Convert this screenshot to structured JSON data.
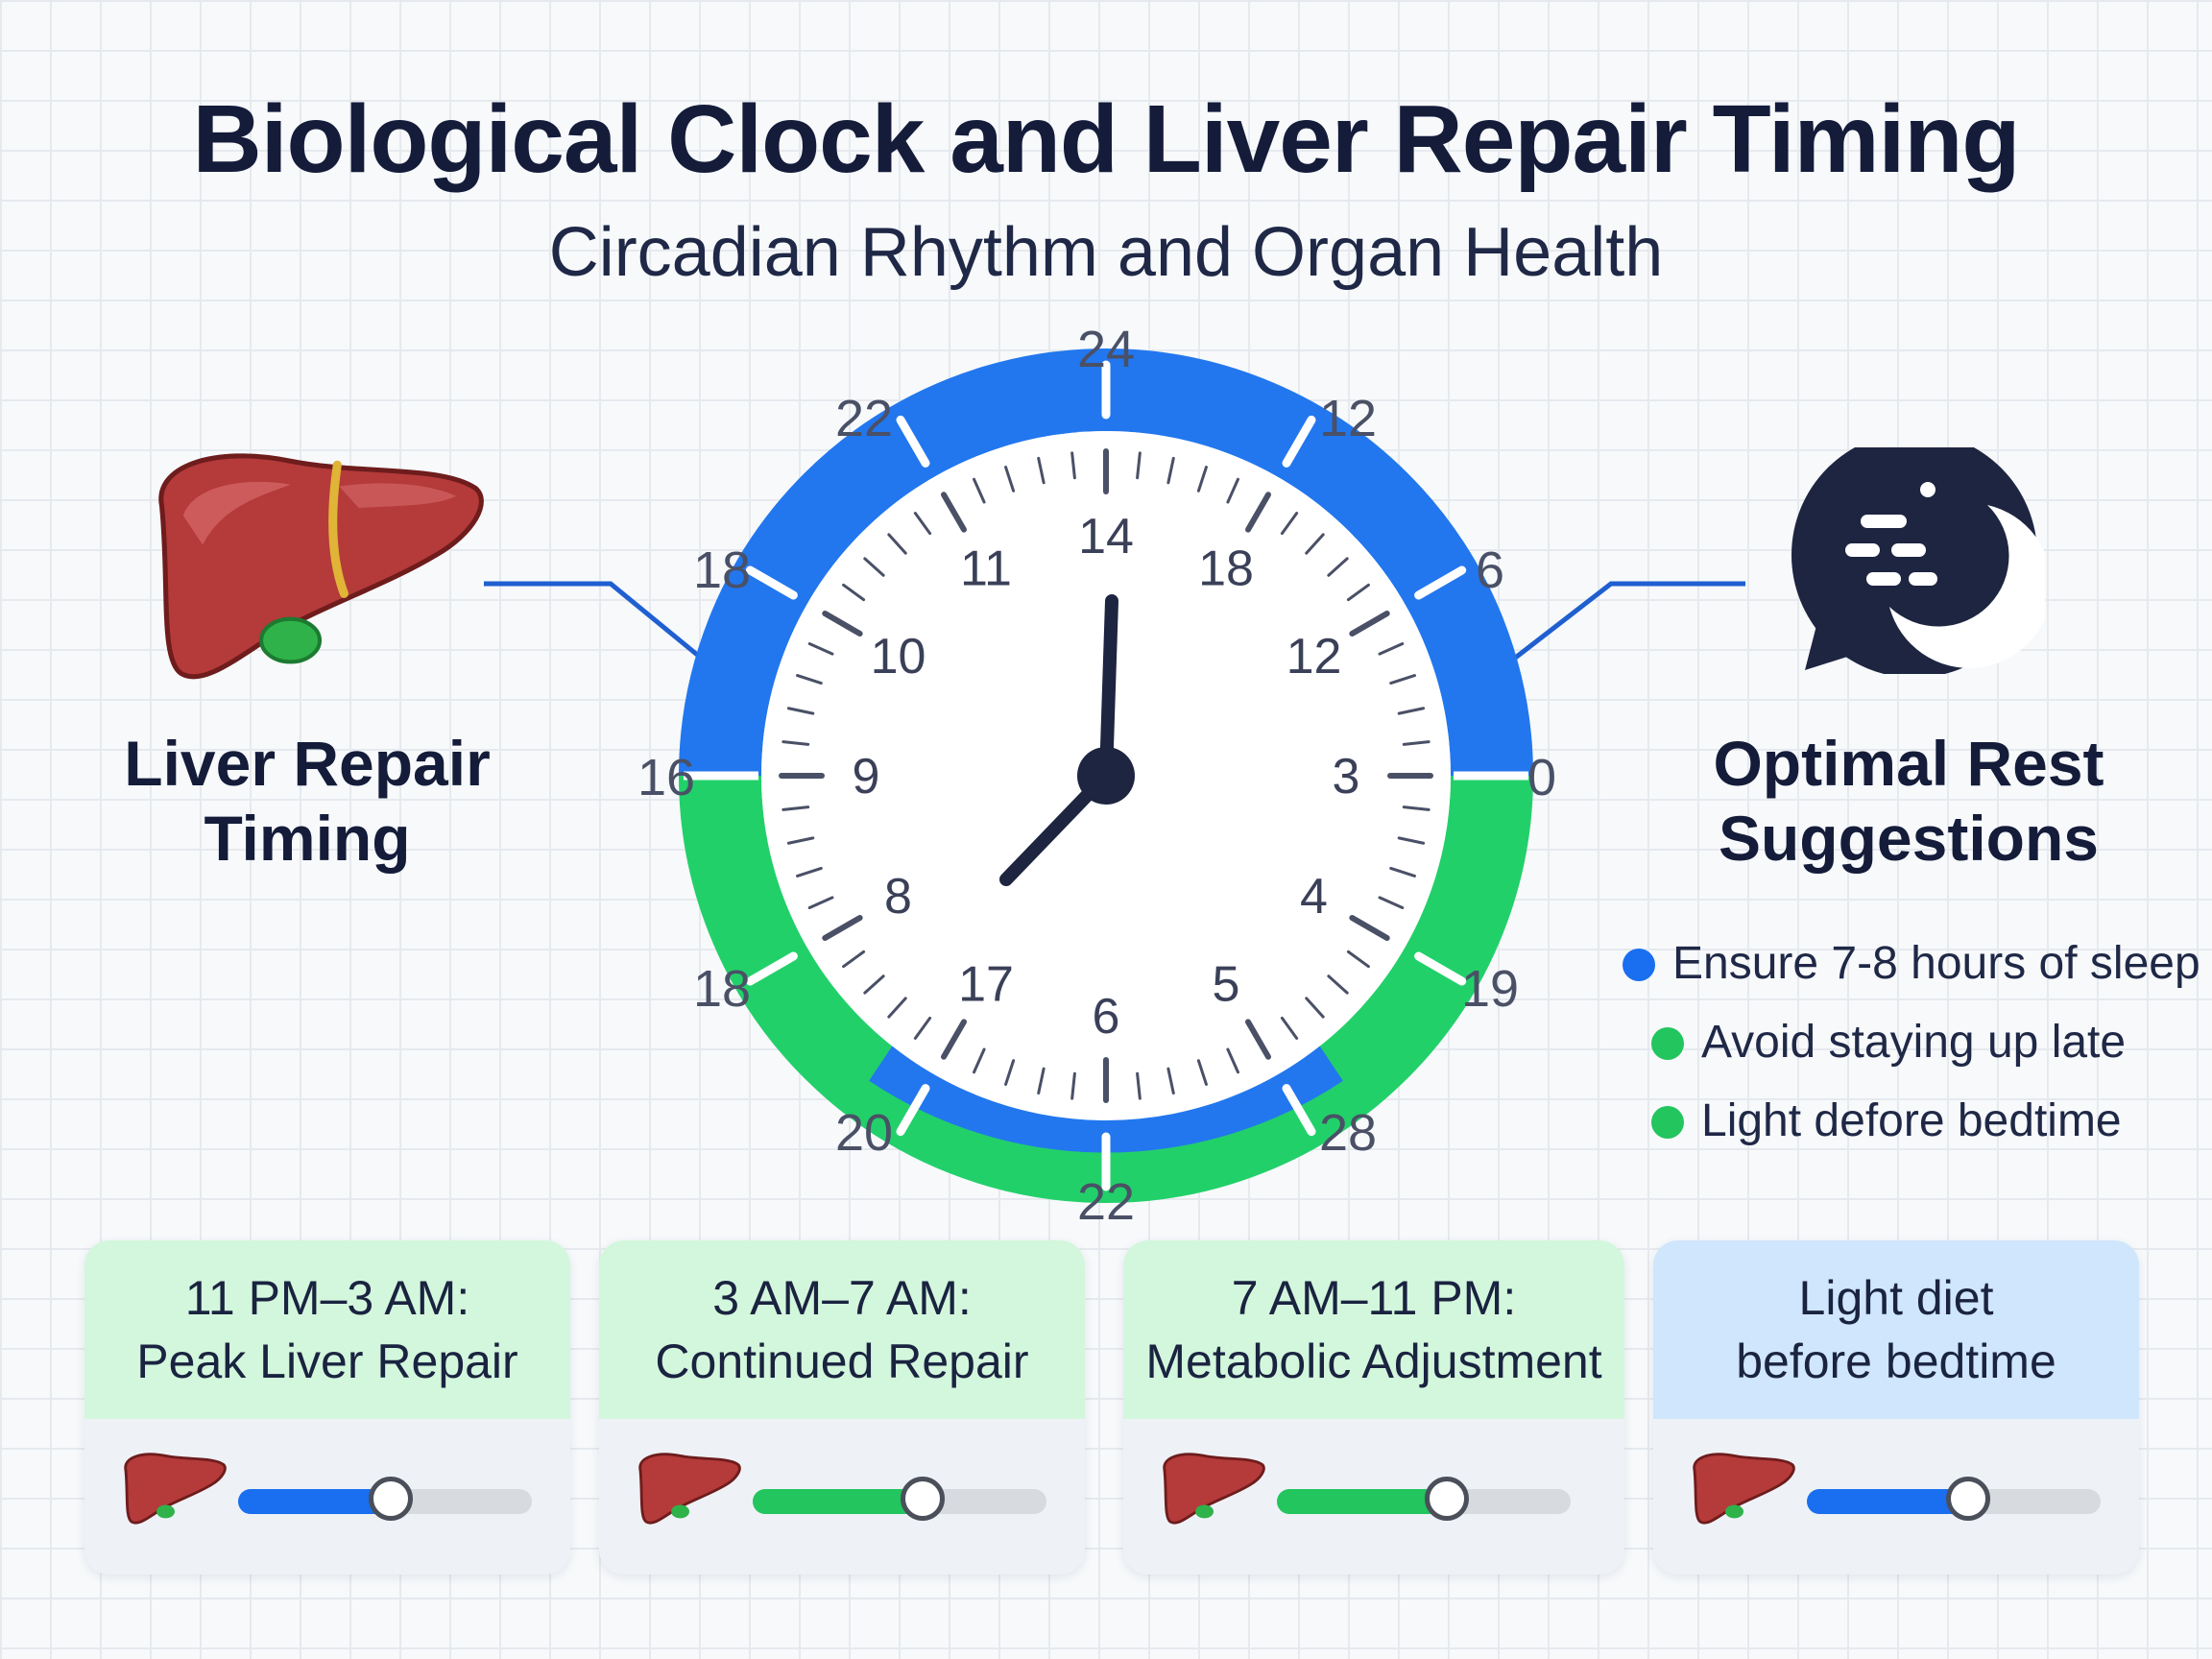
{
  "header": {
    "title": "Biological Clock and Liver Repair Timing",
    "subtitle": "Circadian Rhythm and Organ Health"
  },
  "left_panel": {
    "title_line1": "Liver Repair",
    "title_line2": "Timing",
    "icon": "liver-icon"
  },
  "right_panel": {
    "title_line1": "Optimal Rest",
    "title_line2": "Suggestions",
    "icon": "moon-speech-bubble-icon"
  },
  "clock": {
    "outer_labels": [
      "24",
      "12",
      "6",
      "0",
      "19",
      "28",
      "22",
      "20",
      "18",
      "16",
      "18",
      "22"
    ],
    "inner_labels": [
      "14",
      "18",
      "12",
      "3",
      "4",
      "5",
      "6",
      "17",
      "8",
      "9",
      "10",
      "11"
    ],
    "hands": {
      "hour": 8,
      "minute": 0
    },
    "ring_colors": {
      "upper": "#2277ee",
      "lower": "#22d06a"
    }
  },
  "tips": [
    {
      "text": "Ensure 7-8 hours of sleep",
      "color": "#1a6ff0"
    },
    {
      "text": "Avoid staying up late",
      "color": "#22c55e"
    },
    {
      "text": "Light defore bedtime",
      "color": "#22c55e"
    }
  ],
  "cards": [
    {
      "line1": "11 PM–3 AM:",
      "line2": "Peak Liver Repair",
      "level": 0.52,
      "color": "#1a6ff0",
      "head": "green"
    },
    {
      "line1": "3 AM–7 AM:",
      "line2": "Continued Repair",
      "level": 0.58,
      "color": "#22c55e",
      "head": "green"
    },
    {
      "line1": "7 AM–11 PM:",
      "line2": "Metabolic Adjustment",
      "level": 0.58,
      "color": "#22c55e",
      "head": "green"
    },
    {
      "line1": "Light diet",
      "line2": "before bedtime",
      "level": 0.55,
      "color": "#1a6ff0",
      "head": "blue"
    }
  ]
}
